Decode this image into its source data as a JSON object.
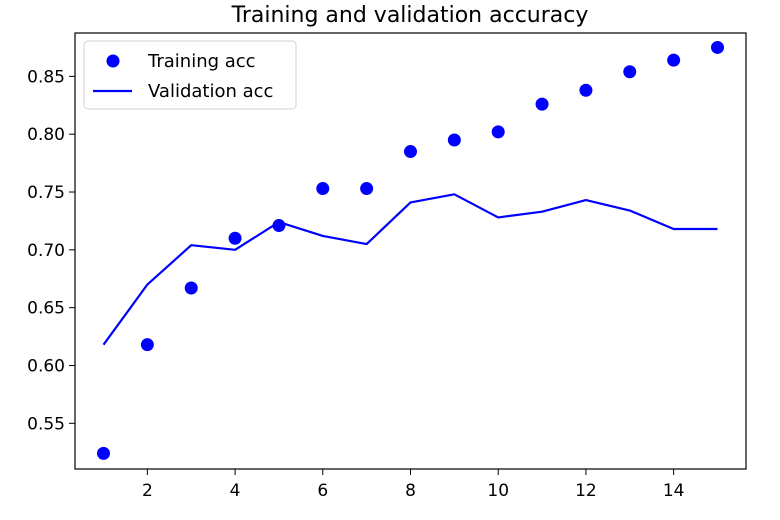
{
  "chart_data": {
    "type": "line",
    "title": "Training and validation accuracy",
    "xlabel": "",
    "ylabel": "",
    "xlim": [
      0.35,
      15.65
    ],
    "ylim": [
      0.5105,
      0.8875
    ],
    "xticks": [
      2,
      4,
      6,
      8,
      10,
      12,
      14
    ],
    "yticks": [
      0.55,
      0.6,
      0.65,
      0.7,
      0.75,
      0.8,
      0.85
    ],
    "x": [
      1,
      2,
      3,
      4,
      5,
      6,
      7,
      8,
      9,
      10,
      11,
      12,
      13,
      14,
      15
    ],
    "series": [
      {
        "name": "Training acc",
        "type": "scatter",
        "color": "#0000ff",
        "values": [
          0.524,
          0.618,
          0.667,
          0.71,
          0.721,
          0.753,
          0.753,
          0.785,
          0.795,
          0.802,
          0.826,
          0.838,
          0.854,
          0.864,
          0.875
        ]
      },
      {
        "name": "Validation acc",
        "type": "line",
        "color": "#0000ff",
        "values": [
          0.618,
          0.67,
          0.704,
          0.7,
          0.724,
          0.712,
          0.705,
          0.741,
          0.748,
          0.728,
          0.733,
          0.743,
          0.734,
          0.718,
          0.718
        ]
      }
    ],
    "grid": false,
    "legend_position": "top-left"
  }
}
